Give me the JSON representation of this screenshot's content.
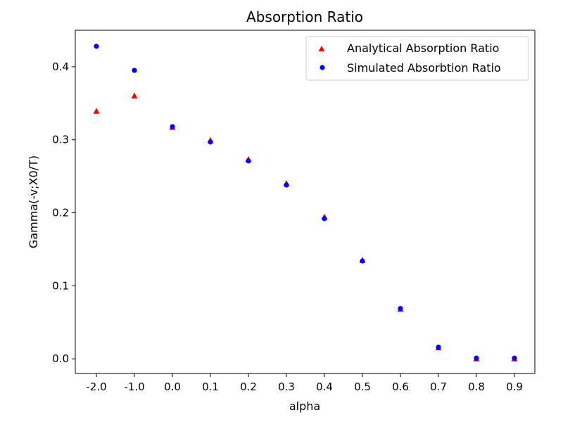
{
  "chart_data": {
    "type": "scatter",
    "title": "Absorption Ratio",
    "xlabel": "alpha",
    "ylabel": "Gamma(-v;X0/T)",
    "categories": [
      "-2.0",
      "-1.0",
      "0.0",
      "0.1",
      "0.2",
      "0.3",
      "0.4",
      "0.5",
      "0.6",
      "0.7",
      "0.8",
      "0.9"
    ],
    "ylim": [
      -0.02,
      0.45
    ],
    "yticks": [
      "0.0",
      "0.1",
      "0.2",
      "0.3",
      "0.4"
    ],
    "ytick_values": [
      0.0,
      0.1,
      0.2,
      0.3,
      0.4
    ],
    "grid": false,
    "legend_position": "top-right",
    "series": [
      {
        "name": "Analytical Absorption Ratio",
        "marker": "triangle",
        "color": "#ff0000",
        "values": [
          0.339,
          0.36,
          0.317,
          0.299,
          0.273,
          0.24,
          0.194,
          0.135,
          0.068,
          0.015,
          0.0,
          0.0
        ]
      },
      {
        "name": "Simulated Absorbtion Ratio",
        "marker": "circle",
        "color": "#0000ff",
        "values": [
          0.428,
          0.395,
          0.318,
          0.297,
          0.271,
          0.238,
          0.192,
          0.134,
          0.069,
          0.016,
          0.001,
          0.001
        ]
      }
    ]
  }
}
